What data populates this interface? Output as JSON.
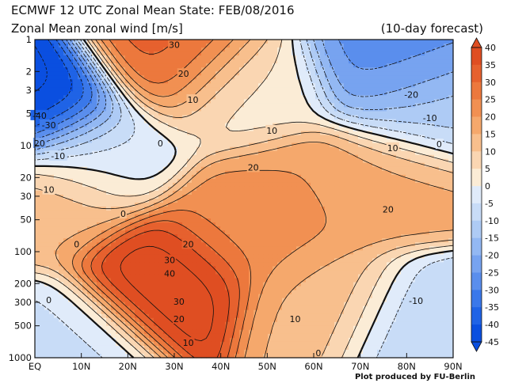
{
  "header": {
    "title": "ECMWF 12 UTC Zonal Mean State: FEB/08/2016",
    "subtitle": "Zonal Mean zonal wind [m/s]",
    "forecast": "(10-day forecast)"
  },
  "credit": "Plot produced by FU-Berlin",
  "chart_data": {
    "type": "heatmap",
    "title": "ECMWF 12 UTC Zonal Mean State: FEB/08/2016",
    "subtitle": "Zonal Mean zonal wind [m/s]",
    "xlabel": "",
    "ylabel": "",
    "x_ticks": [
      "EQ",
      "10N",
      "20N",
      "30N",
      "40N",
      "50N",
      "60N",
      "70N",
      "80N",
      "90N"
    ],
    "x_range": [
      0,
      90
    ],
    "y_ticks": [
      1,
      2,
      3,
      5,
      10,
      20,
      30,
      50,
      100,
      200,
      300,
      500,
      1000
    ],
    "y_range": [
      1000,
      1
    ],
    "y_scale": "log",
    "colorbar": {
      "levels": [
        40,
        35,
        30,
        25,
        20,
        15,
        10,
        5,
        0,
        -5,
        -10,
        -15,
        -20,
        -25,
        -30,
        -35,
        -40,
        -45
      ],
      "placement": "right"
    },
    "features": [
      {
        "lat": 28,
        "p": 180,
        "u": 43
      },
      {
        "lat": 30,
        "p": 1.4,
        "u": 32
      },
      {
        "lat": 46,
        "p": 60,
        "u": 23
      },
      {
        "lat": 58,
        "p": 30,
        "u": 20
      },
      {
        "lat": 78,
        "p": 22,
        "u": 17
      },
      {
        "lat": 63,
        "p": 270,
        "u": 14
      },
      {
        "lat": 1,
        "p": 4,
        "u": -47
      },
      {
        "lat": 78,
        "p": 1.6,
        "u": -27
      },
      {
        "lat": 86,
        "p": 5,
        "u": -12
      },
      {
        "lat": 83,
        "p": 430,
        "u": -10
      },
      {
        "lat": 5,
        "p": 650,
        "u": -6
      },
      {
        "lat": 13,
        "p": 12,
        "u": -3
      },
      {
        "lat": 3,
        "p": 35,
        "u": 14
      },
      {
        "lat": 45,
        "p": 3,
        "u": 3
      }
    ],
    "contour_labels": [
      {
        "text": "30",
        "lat": 30,
        "p": 1.12
      },
      {
        "text": "20",
        "lat": 32,
        "p": 2.1
      },
      {
        "text": "10",
        "lat": 34,
        "p": 3.7
      },
      {
        "text": "10",
        "lat": 51,
        "p": 7.2
      },
      {
        "text": "0",
        "lat": 27,
        "p": 9.5
      },
      {
        "text": "20",
        "lat": 47,
        "p": 16
      },
      {
        "text": "10",
        "lat": 77,
        "p": 10.5
      },
      {
        "text": "-20",
        "lat": 81,
        "p": 3.3
      },
      {
        "text": "-10",
        "lat": 85,
        "p": 5.5
      },
      {
        "text": "0",
        "lat": 87,
        "p": 9.7
      },
      {
        "text": "-40",
        "lat": 1,
        "p": 5.2
      },
      {
        "text": "-30",
        "lat": 3,
        "p": 6.4
      },
      {
        "text": "20",
        "lat": 1,
        "p": 9.5
      },
      {
        "text": "-10",
        "lat": 5,
        "p": 12.5
      },
      {
        "text": "10",
        "lat": 3,
        "p": 26
      },
      {
        "text": "0",
        "lat": 19,
        "p": 44
      },
      {
        "text": "20",
        "lat": 76,
        "p": 40
      },
      {
        "text": "0",
        "lat": 9,
        "p": 85
      },
      {
        "text": "20",
        "lat": 33,
        "p": 85
      },
      {
        "text": "30",
        "lat": 29,
        "p": 120
      },
      {
        "text": "40",
        "lat": 29,
        "p": 160
      },
      {
        "text": "0",
        "lat": 3,
        "p": 285
      },
      {
        "text": "30",
        "lat": 31,
        "p": 295
      },
      {
        "text": "20",
        "lat": 31,
        "p": 430
      },
      {
        "text": "10",
        "lat": 56,
        "p": 430
      },
      {
        "text": "-10",
        "lat": 82,
        "p": 290
      },
      {
        "text": "10",
        "lat": 33,
        "p": 720
      },
      {
        "text": "0",
        "lat": 61,
        "p": 900
      }
    ]
  }
}
